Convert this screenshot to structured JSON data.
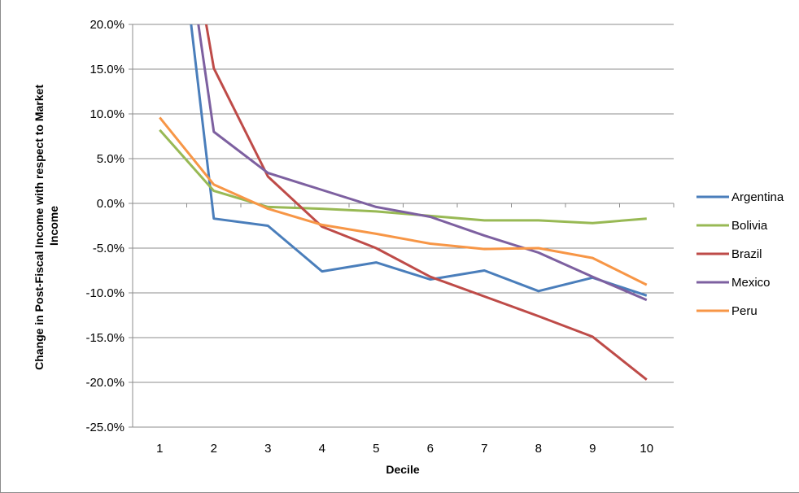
{
  "chart_data": {
    "type": "line",
    "title": "",
    "xlabel": "Decile",
    "ylabel_lines": [
      "Change in Post-Fiscal Income with respect to Market",
      "Income"
    ],
    "x": [
      1,
      2,
      3,
      4,
      5,
      6,
      7,
      8,
      9,
      10
    ],
    "x_tick_labels": [
      "1",
      "2",
      "3",
      "4",
      "5",
      "6",
      "7",
      "8",
      "9",
      "10"
    ],
    "ylim": [
      -25,
      20
    ],
    "y_ticks": [
      20,
      15,
      10,
      5,
      0,
      -5,
      -10,
      -15,
      -20,
      -25
    ],
    "y_tick_labels": [
      "20.0%",
      "15.0%",
      "10.0%",
      "5.0%",
      "0.0%",
      "-5.0%",
      "-10.0%",
      "-15.0%",
      "-20.0%",
      "-25.0%"
    ],
    "grid": true,
    "legend_position": "right",
    "series": [
      {
        "name": "Argentina",
        "color": "#4a7ebb",
        "values": [
          null,
          -1.7,
          -2.5,
          -7.6,
          -6.6,
          -8.5,
          -7.5,
          -9.8,
          -8.3,
          -10.3
        ],
        "decile1_note": "off-scale, above 20.0%"
      },
      {
        "name": "Bolivia",
        "color": "#98b954",
        "values": [
          8.2,
          1.4,
          -0.4,
          -0.6,
          -0.9,
          -1.4,
          -1.9,
          -1.9,
          -2.2,
          -1.7
        ]
      },
      {
        "name": "Brazil",
        "color": "#be4b48",
        "values": [
          null,
          15.1,
          3.0,
          -2.6,
          -5.0,
          -8.2,
          -10.4,
          -12.6,
          -14.9,
          -19.7
        ],
        "decile1_note": "off-scale, above 20.0%"
      },
      {
        "name": "Mexico",
        "color": "#7d60a0",
        "values": [
          null,
          8.0,
          3.4,
          1.5,
          -0.4,
          -1.5,
          -3.6,
          -5.5,
          -8.2,
          -10.8
        ],
        "decile1_note": "off-scale, above 20.0%"
      },
      {
        "name": "Peru",
        "color": "#f79646",
        "values": [
          9.6,
          2.1,
          -0.6,
          -2.4,
          -3.4,
          -4.5,
          -5.1,
          -5.0,
          -6.1,
          -9.1
        ]
      }
    ]
  }
}
